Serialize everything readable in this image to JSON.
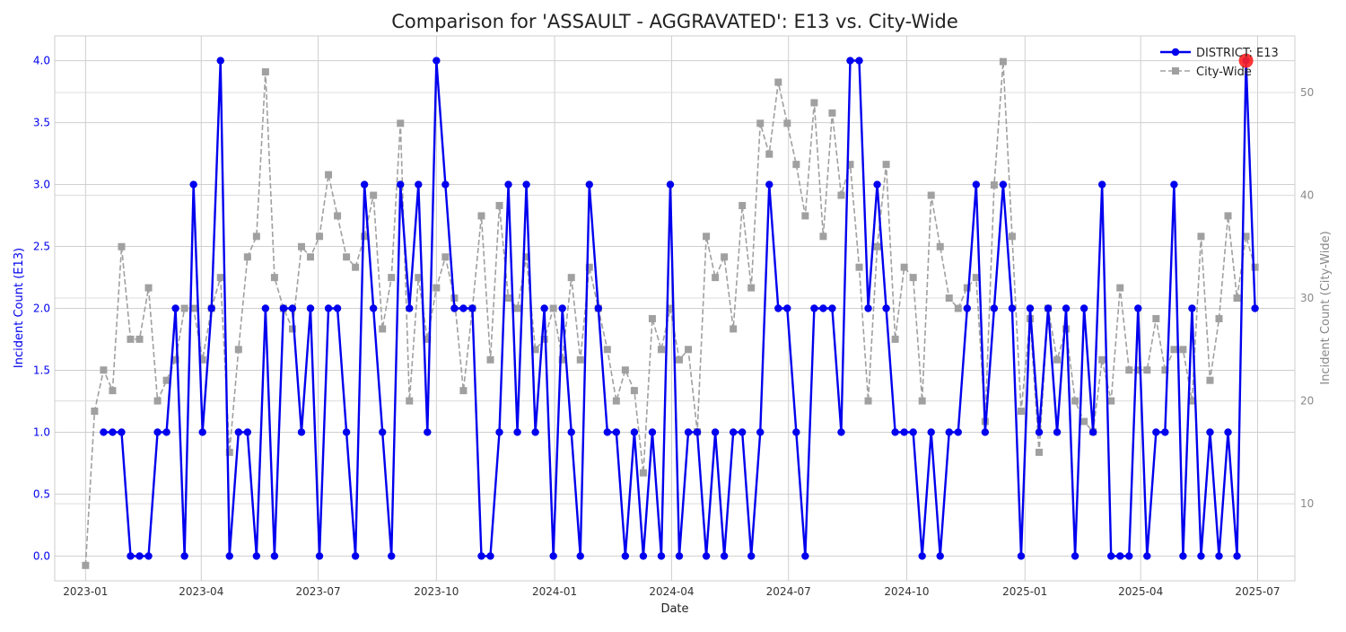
{
  "chart_data": {
    "type": "line",
    "title": "Comparison for 'ASSAULT - AGGRAVATED': E13 vs. City-Wide",
    "xlabel": "Date",
    "ylabel_left": "Incident Count (E13)",
    "ylabel_right": "Incident Count (City-Wide)",
    "x_ticks": [
      "2023-01",
      "2023-04",
      "2023-07",
      "2023-10",
      "2024-01",
      "2024-04",
      "2024-07",
      "2024-10",
      "2025-01",
      "2025-04",
      "2025-07"
    ],
    "y_left_ticks": [
      "0.0",
      "0.5",
      "1.0",
      "1.5",
      "2.0",
      "2.5",
      "3.0",
      "3.5",
      "4.0"
    ],
    "y_right_ticks": [
      "10",
      "20",
      "30",
      "40",
      "50"
    ],
    "ylim_left": [
      -0.2,
      4.2
    ],
    "ylim_right": [
      2.5,
      55.5
    ],
    "x_range": [
      "2022-12-08",
      "2025-07-30"
    ],
    "grid": true,
    "legend_position": "top-right",
    "highlight": {
      "date": "2025-06-22",
      "value": 4
    },
    "series": [
      {
        "name": "DISTRICT: E13",
        "axis": "left",
        "color": "#0000ee",
        "style": "solid",
        "marker": "circle",
        "points": [
          [
            "2023-01-15",
            1
          ],
          [
            "2023-01-22",
            1
          ],
          [
            "2023-01-29",
            1
          ],
          [
            "2023-02-05",
            0
          ],
          [
            "2023-02-12",
            0
          ],
          [
            "2023-02-19",
            0
          ],
          [
            "2023-02-26",
            1
          ],
          [
            "2023-03-05",
            1
          ],
          [
            "2023-03-12",
            2
          ],
          [
            "2023-03-19",
            0
          ],
          [
            "2023-03-26",
            3
          ],
          [
            "2023-04-02",
            1
          ],
          [
            "2023-04-09",
            2
          ],
          [
            "2023-04-16",
            4
          ],
          [
            "2023-04-23",
            0
          ],
          [
            "2023-04-30",
            1
          ],
          [
            "2023-05-07",
            1
          ],
          [
            "2023-05-14",
            0
          ],
          [
            "2023-05-21",
            2
          ],
          [
            "2023-05-28",
            0
          ],
          [
            "2023-06-04",
            2
          ],
          [
            "2023-06-11",
            2
          ],
          [
            "2023-06-18",
            1
          ],
          [
            "2023-06-25",
            2
          ],
          [
            "2023-07-02",
            0
          ],
          [
            "2023-07-09",
            2
          ],
          [
            "2023-07-16",
            2
          ],
          [
            "2023-07-23",
            1
          ],
          [
            "2023-07-30",
            0
          ],
          [
            "2023-08-06",
            3
          ],
          [
            "2023-08-13",
            2
          ],
          [
            "2023-08-20",
            1
          ],
          [
            "2023-08-27",
            0
          ],
          [
            "2023-09-03",
            3
          ],
          [
            "2023-09-10",
            2
          ],
          [
            "2023-09-17",
            3
          ],
          [
            "2023-09-24",
            1
          ],
          [
            "2023-10-01",
            4
          ],
          [
            "2023-10-08",
            3
          ],
          [
            "2023-10-15",
            2
          ],
          [
            "2023-10-22",
            2
          ],
          [
            "2023-10-29",
            2
          ],
          [
            "2023-11-05",
            0
          ],
          [
            "2023-11-12",
            0
          ],
          [
            "2023-11-19",
            1
          ],
          [
            "2023-11-26",
            3
          ],
          [
            "2023-12-03",
            1
          ],
          [
            "2023-12-10",
            3
          ],
          [
            "2023-12-17",
            1
          ],
          [
            "2023-12-24",
            2
          ],
          [
            "2023-12-31",
            0
          ],
          [
            "2024-01-07",
            2
          ],
          [
            "2024-01-14",
            1
          ],
          [
            "2024-01-21",
            0
          ],
          [
            "2024-01-28",
            3
          ],
          [
            "2024-02-04",
            2
          ],
          [
            "2024-02-11",
            1
          ],
          [
            "2024-02-18",
            1
          ],
          [
            "2024-02-25",
            0
          ],
          [
            "2024-03-03",
            1
          ],
          [
            "2024-03-10",
            0
          ],
          [
            "2024-03-17",
            1
          ],
          [
            "2024-03-24",
            0
          ],
          [
            "2024-03-31",
            3
          ],
          [
            "2024-04-07",
            0
          ],
          [
            "2024-04-14",
            1
          ],
          [
            "2024-04-21",
            1
          ],
          [
            "2024-04-28",
            0
          ],
          [
            "2024-05-05",
            1
          ],
          [
            "2024-05-12",
            0
          ],
          [
            "2024-05-19",
            1
          ],
          [
            "2024-05-26",
            1
          ],
          [
            "2024-06-02",
            0
          ],
          [
            "2024-06-09",
            1
          ],
          [
            "2024-06-16",
            3
          ],
          [
            "2024-06-23",
            2
          ],
          [
            "2024-06-30",
            2
          ],
          [
            "2024-07-07",
            1
          ],
          [
            "2024-07-14",
            0
          ],
          [
            "2024-07-21",
            2
          ],
          [
            "2024-07-28",
            2
          ],
          [
            "2024-08-04",
            2
          ],
          [
            "2024-08-11",
            1
          ],
          [
            "2024-08-18",
            4
          ],
          [
            "2024-08-25",
            4
          ],
          [
            "2024-09-01",
            2
          ],
          [
            "2024-09-08",
            3
          ],
          [
            "2024-09-15",
            2
          ],
          [
            "2024-09-22",
            1
          ],
          [
            "2024-09-29",
            1
          ],
          [
            "2024-10-06",
            1
          ],
          [
            "2024-10-13",
            0
          ],
          [
            "2024-10-20",
            1
          ],
          [
            "2024-10-27",
            0
          ],
          [
            "2024-11-03",
            1
          ],
          [
            "2024-11-10",
            1
          ],
          [
            "2024-11-17",
            2
          ],
          [
            "2024-11-24",
            3
          ],
          [
            "2024-12-01",
            1
          ],
          [
            "2024-12-08",
            2
          ],
          [
            "2024-12-15",
            3
          ],
          [
            "2024-12-22",
            2
          ],
          [
            "2024-12-29",
            0
          ],
          [
            "2025-01-05",
            2
          ],
          [
            "2025-01-12",
            1
          ],
          [
            "2025-01-19",
            2
          ],
          [
            "2025-01-26",
            1
          ],
          [
            "2025-02-02",
            2
          ],
          [
            "2025-02-09",
            0
          ],
          [
            "2025-02-16",
            2
          ],
          [
            "2025-02-23",
            1
          ],
          [
            "2025-03-02",
            3
          ],
          [
            "2025-03-09",
            0
          ],
          [
            "2025-03-16",
            0
          ],
          [
            "2025-03-23",
            0
          ],
          [
            "2025-03-30",
            2
          ],
          [
            "2025-04-06",
            0
          ],
          [
            "2025-04-13",
            1
          ],
          [
            "2025-04-20",
            1
          ],
          [
            "2025-04-27",
            3
          ],
          [
            "2025-05-04",
            0
          ],
          [
            "2025-05-11",
            2
          ],
          [
            "2025-05-18",
            0
          ],
          [
            "2025-05-25",
            1
          ],
          [
            "2025-06-01",
            0
          ],
          [
            "2025-06-08",
            1
          ],
          [
            "2025-06-15",
            0
          ],
          [
            "2025-06-22",
            4
          ],
          [
            "2025-06-29",
            2
          ]
        ]
      },
      {
        "name": "City-Wide",
        "axis": "right",
        "color": "#a0a0a0",
        "style": "dashed",
        "marker": "square",
        "points": [
          [
            "2023-01-01",
            4
          ],
          [
            "2023-01-08",
            19
          ],
          [
            "2023-01-15",
            23
          ],
          [
            "2023-01-22",
            21
          ],
          [
            "2023-01-29",
            35
          ],
          [
            "2023-02-05",
            26
          ],
          [
            "2023-02-12",
            26
          ],
          [
            "2023-02-19",
            31
          ],
          [
            "2023-02-26",
            20
          ],
          [
            "2023-03-05",
            22
          ],
          [
            "2023-03-12",
            24
          ],
          [
            "2023-03-19",
            29
          ],
          [
            "2023-03-26",
            29
          ],
          [
            "2023-04-02",
            24
          ],
          [
            "2023-04-09",
            29
          ],
          [
            "2023-04-16",
            32
          ],
          [
            "2023-04-23",
            15
          ],
          [
            "2023-04-30",
            25
          ],
          [
            "2023-05-07",
            34
          ],
          [
            "2023-05-14",
            36
          ],
          [
            "2023-05-21",
            52
          ],
          [
            "2023-05-28",
            32
          ],
          [
            "2023-06-04",
            29
          ],
          [
            "2023-06-11",
            27
          ],
          [
            "2023-06-18",
            35
          ],
          [
            "2023-06-25",
            34
          ],
          [
            "2023-07-02",
            36
          ],
          [
            "2023-07-09",
            42
          ],
          [
            "2023-07-16",
            38
          ],
          [
            "2023-07-23",
            34
          ],
          [
            "2023-07-30",
            33
          ],
          [
            "2023-08-06",
            36
          ],
          [
            "2023-08-13",
            40
          ],
          [
            "2023-08-20",
            27
          ],
          [
            "2023-08-27",
            32
          ],
          [
            "2023-09-03",
            47
          ],
          [
            "2023-09-10",
            20
          ],
          [
            "2023-09-17",
            32
          ],
          [
            "2023-09-24",
            26
          ],
          [
            "2023-10-01",
            31
          ],
          [
            "2023-10-08",
            34
          ],
          [
            "2023-10-15",
            30
          ],
          [
            "2023-10-22",
            21
          ],
          [
            "2023-10-29",
            29
          ],
          [
            "2023-11-05",
            38
          ],
          [
            "2023-11-12",
            24
          ],
          [
            "2023-11-19",
            39
          ],
          [
            "2023-11-26",
            30
          ],
          [
            "2023-12-03",
            29
          ],
          [
            "2023-12-10",
            34
          ],
          [
            "2023-12-17",
            25
          ],
          [
            "2023-12-24",
            26
          ],
          [
            "2023-12-31",
            29
          ],
          [
            "2024-01-07",
            24
          ],
          [
            "2024-01-14",
            32
          ],
          [
            "2024-01-21",
            24
          ],
          [
            "2024-01-28",
            33
          ],
          [
            "2024-02-04",
            29
          ],
          [
            "2024-02-11",
            25
          ],
          [
            "2024-02-18",
            20
          ],
          [
            "2024-02-25",
            23
          ],
          [
            "2024-03-03",
            21
          ],
          [
            "2024-03-10",
            13
          ],
          [
            "2024-03-17",
            28
          ],
          [
            "2024-03-24",
            25
          ],
          [
            "2024-03-31",
            29
          ],
          [
            "2024-04-07",
            24
          ],
          [
            "2024-04-14",
            25
          ],
          [
            "2024-04-21",
            17
          ],
          [
            "2024-04-28",
            36
          ],
          [
            "2024-05-05",
            32
          ],
          [
            "2024-05-12",
            34
          ],
          [
            "2024-05-19",
            27
          ],
          [
            "2024-05-26",
            39
          ],
          [
            "2024-06-02",
            31
          ],
          [
            "2024-06-09",
            47
          ],
          [
            "2024-06-16",
            44
          ],
          [
            "2024-06-23",
            51
          ],
          [
            "2024-06-30",
            47
          ],
          [
            "2024-07-07",
            43
          ],
          [
            "2024-07-14",
            38
          ],
          [
            "2024-07-21",
            49
          ],
          [
            "2024-07-28",
            36
          ],
          [
            "2024-08-04",
            48
          ],
          [
            "2024-08-11",
            40
          ],
          [
            "2024-08-18",
            43
          ],
          [
            "2024-08-25",
            33
          ],
          [
            "2024-09-01",
            20
          ],
          [
            "2024-09-08",
            35
          ],
          [
            "2024-09-15",
            43
          ],
          [
            "2024-09-22",
            26
          ],
          [
            "2024-09-29",
            33
          ],
          [
            "2024-10-06",
            32
          ],
          [
            "2024-10-13",
            20
          ],
          [
            "2024-10-20",
            40
          ],
          [
            "2024-10-27",
            35
          ],
          [
            "2024-11-03",
            30
          ],
          [
            "2024-11-10",
            29
          ],
          [
            "2024-11-17",
            31
          ],
          [
            "2024-11-24",
            32
          ],
          [
            "2024-12-01",
            18
          ],
          [
            "2024-12-08",
            41
          ],
          [
            "2024-12-15",
            53
          ],
          [
            "2024-12-22",
            36
          ],
          [
            "2024-12-29",
            19
          ],
          [
            "2025-01-05",
            28
          ],
          [
            "2025-01-12",
            15
          ],
          [
            "2025-01-19",
            29
          ],
          [
            "2025-01-26",
            24
          ],
          [
            "2025-02-02",
            27
          ],
          [
            "2025-02-09",
            20
          ],
          [
            "2025-02-16",
            18
          ],
          [
            "2025-02-23",
            17
          ],
          [
            "2025-03-02",
            24
          ],
          [
            "2025-03-09",
            20
          ],
          [
            "2025-03-16",
            31
          ],
          [
            "2025-03-23",
            23
          ],
          [
            "2025-03-30",
            23
          ],
          [
            "2025-04-06",
            23
          ],
          [
            "2025-04-13",
            28
          ],
          [
            "2025-04-20",
            23
          ],
          [
            "2025-04-27",
            25
          ],
          [
            "2025-05-04",
            25
          ],
          [
            "2025-05-11",
            20
          ],
          [
            "2025-05-18",
            36
          ],
          [
            "2025-05-25",
            22
          ],
          [
            "2025-06-01",
            28
          ],
          [
            "2025-06-08",
            38
          ],
          [
            "2025-06-15",
            30
          ],
          [
            "2025-06-22",
            36
          ],
          [
            "2025-06-29",
            33
          ]
        ]
      }
    ]
  }
}
